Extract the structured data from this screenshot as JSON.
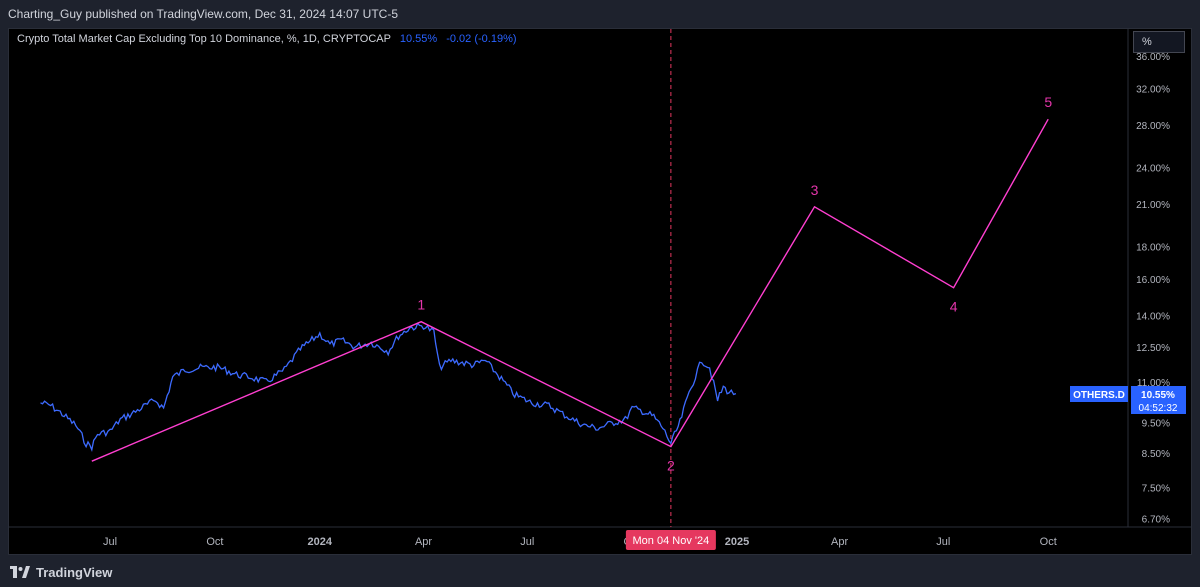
{
  "header": {
    "publisher_line": "Charting_Guy published on TradingView.com, Dec 31, 2024 14:07 UTC-5"
  },
  "legend": {
    "symbol_desc": "Crypto Total Market Cap Excluding Top 10 Dominance, %, 1D, CRYPTOCAP",
    "last_value": "10.55%",
    "change": "-0.02 (-0.19%)"
  },
  "scale_button": {
    "label": "%"
  },
  "footer": {
    "brand": "TradingView"
  },
  "colors": {
    "price_line": "#3d6bff",
    "wave_line": "#ff3fd0",
    "label_pink": "#e535ab",
    "crosshair": "#e5385f",
    "axis_text": "#b2b5be"
  },
  "chart_data": {
    "type": "line",
    "y_scale": "log",
    "y_ticks": [
      "36.00%",
      "32.00%",
      "28.00%",
      "24.00%",
      "21.00%",
      "18.00%",
      "16.00%",
      "14.00%",
      "12.50%",
      "11.00%",
      "9.50%",
      "8.50%",
      "7.50%",
      "6.70%"
    ],
    "x_ticks": [
      "Jul",
      "Oct",
      "2024",
      "Apr",
      "Jul",
      "Oct",
      "2025",
      "Apr",
      "Jul",
      "Oct"
    ],
    "series": [
      {
        "name": "OTHERS.D",
        "points": [
          [
            "2023-05-01",
            10.2
          ],
          [
            "2023-05-10",
            10.1
          ],
          [
            "2023-05-20",
            9.8
          ],
          [
            "2023-06-01",
            9.4
          ],
          [
            "2023-06-10",
            8.8
          ],
          [
            "2023-06-15",
            8.7
          ],
          [
            "2023-06-20",
            9.1
          ],
          [
            "2023-07-01",
            9.2
          ],
          [
            "2023-07-10",
            9.6
          ],
          [
            "2023-07-20",
            9.8
          ],
          [
            "2023-08-01",
            10.1
          ],
          [
            "2023-08-10",
            10.3
          ],
          [
            "2023-08-17",
            10.0
          ],
          [
            "2023-08-25",
            11.2
          ],
          [
            "2023-09-05",
            11.5
          ],
          [
            "2023-09-20",
            11.6
          ],
          [
            "2023-10-05",
            11.6
          ],
          [
            "2023-10-20",
            11.3
          ],
          [
            "2023-11-01",
            11.2
          ],
          [
            "2023-11-15",
            11.0
          ],
          [
            "2023-12-01",
            11.5
          ],
          [
            "2023-12-15",
            12.4
          ],
          [
            "2024-01-01",
            13.1
          ],
          [
            "2024-01-10",
            12.6
          ],
          [
            "2024-01-20",
            12.8
          ],
          [
            "2024-02-01",
            12.5
          ],
          [
            "2024-02-15",
            12.7
          ],
          [
            "2024-03-01",
            12.3
          ],
          [
            "2024-03-10",
            13.0
          ],
          [
            "2024-03-20",
            13.4
          ],
          [
            "2024-04-01",
            13.5
          ],
          [
            "2024-04-10",
            13.2
          ],
          [
            "2024-04-15",
            11.6
          ],
          [
            "2024-04-25",
            11.9
          ],
          [
            "2024-05-05",
            11.8
          ],
          [
            "2024-05-15",
            11.7
          ],
          [
            "2024-05-25",
            11.9
          ],
          [
            "2024-06-05",
            11.3
          ],
          [
            "2024-06-20",
            10.5
          ],
          [
            "2024-07-05",
            10.2
          ],
          [
            "2024-07-20",
            10.1
          ],
          [
            "2024-08-01",
            9.8
          ],
          [
            "2024-08-10",
            9.6
          ],
          [
            "2024-08-20",
            9.4
          ],
          [
            "2024-09-01",
            9.3
          ],
          [
            "2024-09-15",
            9.5
          ],
          [
            "2024-09-25",
            9.6
          ],
          [
            "2024-10-01",
            10.0
          ],
          [
            "2024-10-10",
            9.9
          ],
          [
            "2024-10-20",
            9.7
          ],
          [
            "2024-10-28",
            9.3
          ],
          [
            "2024-11-04",
            8.8
          ],
          [
            "2024-11-12",
            9.5
          ],
          [
            "2024-11-20",
            10.6
          ],
          [
            "2024-12-01",
            11.9
          ],
          [
            "2024-12-08",
            11.6
          ],
          [
            "2024-12-15",
            10.3
          ],
          [
            "2024-12-20",
            10.8
          ],
          [
            "2024-12-25",
            10.6
          ],
          [
            "2024-12-31",
            10.55
          ]
        ]
      }
    ],
    "wave_projection": [
      {
        "date": "2023-06-15",
        "value": 8.25,
        "label": ""
      },
      {
        "date": "2024-03-30",
        "value": 13.7,
        "label": "1"
      },
      {
        "date": "2024-11-04",
        "value": 8.7,
        "label": "2"
      },
      {
        "date": "2025-03-10",
        "value": 20.8,
        "label": "3"
      },
      {
        "date": "2025-07-10",
        "value": 15.5,
        "label": "4"
      },
      {
        "date": "2025-10-01",
        "value": 28.6,
        "label": "5"
      }
    ],
    "crosshair": {
      "date": "2024-11-04",
      "label": "Mon 04 Nov '24"
    },
    "last_price_badge": {
      "symbol": "OTHERS.D",
      "value": "10.55%",
      "countdown": "04:52:32"
    }
  }
}
